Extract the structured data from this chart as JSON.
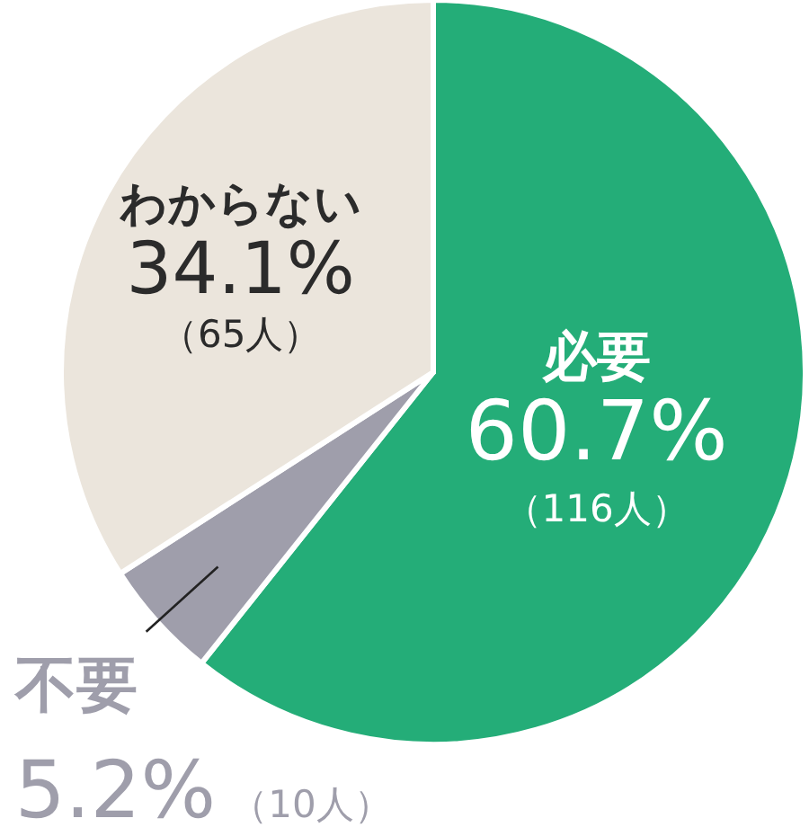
{
  "chart_data": {
    "type": "pie",
    "categories": [
      "必要",
      "不要",
      "わからない"
    ],
    "values": [
      60.7,
      5.2,
      34.1
    ],
    "colors": [
      "#24ad78",
      "#9f9eab",
      "#ebe5dc"
    ],
    "value_labels": [
      "60.7%\n（116人）",
      "5.2%\n（10人）",
      "34.1%\n（65人）"
    ]
  }
}
